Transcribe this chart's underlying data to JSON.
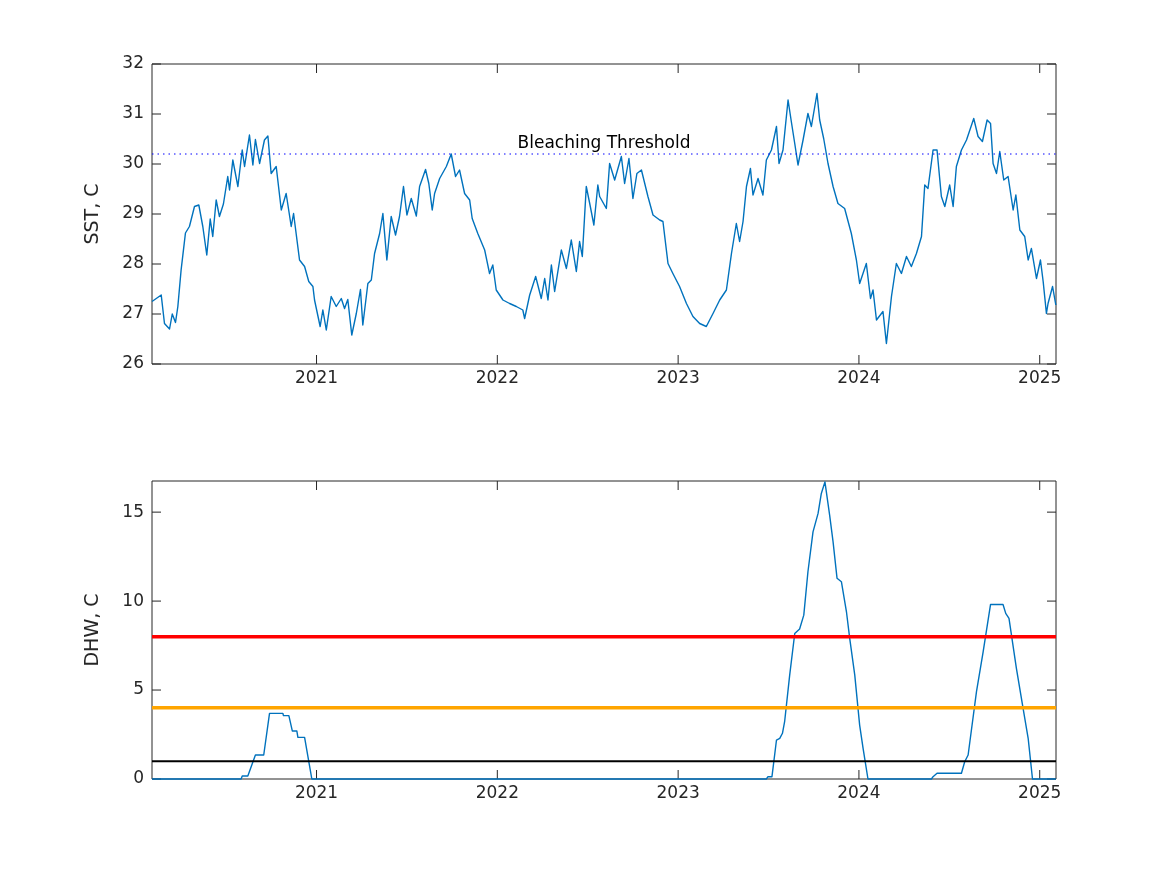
{
  "chart_data": [
    {
      "type": "line",
      "ylabel": "SST, C",
      "xlim": [
        2020.09,
        2025.09
      ],
      "xticks": [
        2021,
        2022,
        2023,
        2024,
        2025
      ],
      "ylim": [
        26,
        32
      ],
      "yticks": [
        26,
        27,
        28,
        29,
        30,
        31,
        32
      ],
      "marker": "none",
      "legend": false,
      "series": [
        {
          "color": "#0072bd",
          "x": [
            2020.09,
            2020.141,
            2020.159,
            2020.187,
            2020.202,
            2020.22,
            2020.233,
            2020.251,
            2020.275,
            2020.297,
            2020.325,
            2020.349,
            2020.371,
            2020.393,
            2020.412,
            2020.426,
            2020.445,
            2020.463,
            2020.485,
            2020.509,
            2020.519,
            2020.537,
            2020.565,
            2020.589,
            2020.602,
            2020.629,
            2020.648,
            2020.662,
            2020.685,
            2020.712,
            2020.731,
            2020.749,
            2020.777,
            2020.805,
            2020.832,
            2020.86,
            2020.873,
            2020.906,
            2020.934,
            2020.957,
            2020.98,
            2020.989,
            2021.02,
            2021.035,
            2021.054,
            2021.081,
            2021.109,
            2021.137,
            2021.155,
            2021.173,
            2021.195,
            2021.22,
            2021.243,
            2021.256,
            2021.284,
            2021.303,
            2021.321,
            2021.349,
            2021.367,
            2021.389,
            2021.413,
            2021.437,
            2021.459,
            2021.481,
            2021.5,
            2021.524,
            2021.552,
            2021.57,
            2021.603,
            2021.621,
            2021.64,
            2021.653,
            2021.681,
            2021.718,
            2021.745,
            2021.769,
            2021.791,
            2021.819,
            2021.847,
            2021.861,
            2021.892,
            2021.93,
            2021.957,
            2021.975,
            2021.994,
            2022.031,
            2022.068,
            2022.105,
            2022.141,
            2022.151,
            2022.179,
            2022.212,
            2022.243,
            2022.262,
            2022.28,
            2022.299,
            2022.317,
            2022.354,
            2022.382,
            2022.409,
            2022.437,
            2022.455,
            2022.47,
            2022.492,
            2022.511,
            2022.534,
            2022.556,
            2022.566,
            2022.603,
            2022.621,
            2022.649,
            2022.686,
            2022.704,
            2022.728,
            2022.75,
            2022.772,
            2022.797,
            2022.833,
            2022.861,
            2022.898,
            2022.916,
            2022.944,
            2022.971,
            2023.008,
            2023.046,
            2023.082,
            2023.119,
            2023.156,
            2023.193,
            2023.23,
            2023.267,
            2023.295,
            2023.322,
            2023.34,
            2023.359,
            2023.378,
            2023.4,
            2023.414,
            2023.442,
            2023.469,
            2023.488,
            2023.516,
            2023.544,
            2023.558,
            2023.58,
            2023.608,
            2023.626,
            2023.645,
            2023.663,
            2023.691,
            2023.718,
            2023.737,
            2023.768,
            2023.783,
            2023.805,
            2023.829,
            2023.857,
            2023.884,
            2023.921,
            2023.958,
            2023.986,
            2024.004,
            2024.041,
            2024.064,
            2024.078,
            2024.097,
            2024.133,
            2024.152,
            2024.18,
            2024.207,
            2024.235,
            2024.263,
            2024.29,
            2024.318,
            2024.346,
            2024.364,
            2024.382,
            2024.41,
            2024.432,
            2024.456,
            2024.475,
            2024.502,
            2024.521,
            2024.539,
            2024.567,
            2024.595,
            2024.635,
            2024.659,
            2024.683,
            2024.709,
            2024.728,
            2024.742,
            2024.761,
            2024.779,
            2024.801,
            2024.825,
            2024.853,
            2024.868,
            2024.89,
            2024.917,
            2024.936,
            2024.954,
            2024.982,
            2025.004,
            2025.019,
            2025.037,
            2025.046,
            2025.071,
            2025.089
          ],
          "values": [
            27.25,
            27.38,
            26.81,
            26.7,
            27.0,
            26.83,
            27.15,
            27.88,
            28.62,
            28.75,
            29.15,
            29.18,
            28.75,
            28.18,
            28.9,
            28.55,
            29.28,
            28.95,
            29.2,
            29.75,
            29.48,
            30.08,
            29.55,
            30.28,
            29.95,
            30.58,
            29.98,
            30.49,
            30.01,
            30.48,
            30.56,
            29.81,
            29.95,
            29.08,
            29.41,
            28.75,
            29.01,
            28.08,
            27.95,
            27.65,
            27.55,
            27.28,
            26.75,
            27.08,
            26.68,
            27.35,
            27.15,
            27.31,
            27.11,
            27.29,
            26.58,
            27.01,
            27.49,
            26.78,
            27.61,
            27.68,
            28.21,
            28.61,
            29.01,
            28.08,
            28.95,
            28.58,
            28.95,
            29.55,
            28.98,
            29.31,
            28.96,
            29.55,
            29.89,
            29.61,
            29.08,
            29.41,
            29.71,
            29.95,
            30.2,
            29.75,
            29.88,
            29.41,
            29.28,
            28.91,
            28.61,
            28.28,
            27.81,
            27.98,
            27.48,
            27.28,
            27.21,
            27.15,
            27.08,
            26.91,
            27.38,
            27.75,
            27.31,
            27.71,
            27.28,
            27.98,
            27.45,
            28.28,
            27.91,
            28.48,
            27.85,
            28.45,
            28.15,
            29.55,
            29.21,
            28.78,
            29.58,
            29.35,
            29.11,
            30.01,
            29.68,
            30.15,
            29.61,
            30.11,
            29.31,
            29.81,
            29.88,
            29.35,
            28.98,
            28.88,
            28.85,
            28.01,
            27.81,
            27.55,
            27.21,
            26.95,
            26.81,
            26.75,
            27.01,
            27.28,
            27.48,
            28.21,
            28.81,
            28.45,
            28.85,
            29.55,
            29.91,
            29.38,
            29.71,
            29.38,
            30.08,
            30.28,
            30.75,
            30.01,
            30.28,
            31.28,
            30.85,
            30.41,
            29.98,
            30.48,
            31.01,
            30.75,
            31.41,
            30.88,
            30.51,
            30.01,
            29.55,
            29.21,
            29.11,
            28.61,
            28.08,
            27.61,
            28.01,
            27.31,
            27.48,
            26.88,
            27.05,
            26.41,
            27.35,
            28.01,
            27.81,
            28.15,
            27.95,
            28.21,
            28.55,
            29.58,
            29.51,
            30.28,
            30.28,
            29.35,
            29.15,
            29.58,
            29.15,
            29.95,
            30.28,
            30.48,
            30.91,
            30.55,
            30.45,
            30.88,
            30.81,
            30.01,
            29.81,
            30.25,
            29.68,
            29.75,
            29.08,
            29.38,
            28.68,
            28.55,
            28.08,
            28.31,
            27.71,
            28.08,
            27.65,
            27.01,
            27.21,
            27.55,
            27.18
          ]
        }
      ],
      "ref_lines": [
        {
          "axis": "y",
          "value": 30.2,
          "label": "Bleaching Threshold",
          "color": "#0000ff",
          "line_style": "dotted"
        }
      ]
    },
    {
      "type": "line",
      "ylabel": "DHW, C",
      "xlim": [
        2020.09,
        2025.09
      ],
      "xticks": [
        2021,
        2022,
        2023,
        2024,
        2025
      ],
      "ylim": [
        0,
        16.75
      ],
      "yticks": [
        0,
        5,
        10,
        15
      ],
      "marker": "none",
      "legend": false,
      "series": [
        {
          "color": "#0072bd",
          "x": [
            2020.09,
            2020.583,
            2020.589,
            2020.62,
            2020.662,
            2020.708,
            2020.74,
            2020.814,
            2020.817,
            2020.847,
            2020.866,
            2020.891,
            2020.897,
            2020.934,
            2020.974,
            2023.488,
            2023.497,
            2023.519,
            2023.544,
            2023.562,
            2023.577,
            2023.589,
            2023.617,
            2023.645,
            2023.672,
            2023.695,
            2023.718,
            2023.746,
            2023.774,
            2023.792,
            2023.812,
            2023.838,
            2023.857,
            2023.879,
            2023.903,
            2023.931,
            2023.949,
            2023.977,
            2024.004,
            2024.023,
            2024.05,
            2024.401,
            2024.41,
            2024.432,
            2024.567,
            2024.585,
            2024.604,
            2024.65,
            2024.687,
            2024.728,
            2024.797,
            2024.812,
            2024.83,
            2024.871,
            2024.908,
            2024.936,
            2024.96,
            2025.089
          ],
          "values": [
            0,
            0,
            0.17,
            0.17,
            1.35,
            1.35,
            3.69,
            3.69,
            3.56,
            3.56,
            2.7,
            2.7,
            2.34,
            2.34,
            0,
            0,
            0.13,
            0.13,
            2.19,
            2.28,
            2.57,
            3.22,
            5.84,
            8.18,
            8.43,
            9.21,
            11.65,
            13.89,
            14.93,
            16.05,
            16.7,
            14.83,
            13.33,
            11.28,
            11.09,
            9.4,
            7.9,
            5.84,
            3.03,
            1.72,
            0,
            0,
            0.13,
            0.32,
            0.32,
            0.97,
            1.35,
            4.9,
            7.15,
            9.81,
            9.81,
            9.31,
            9.03,
            6.22,
            3.97,
            2.29,
            0,
            0
          ]
        }
      ],
      "ref_lines": [
        {
          "axis": "y",
          "value": 8,
          "color": "#ff0000",
          "line_style": "solid"
        },
        {
          "axis": "y",
          "value": 4,
          "color": "#ffa500",
          "line_style": "solid"
        },
        {
          "axis": "y",
          "value": 1,
          "color": "#000000",
          "line_style": "solid"
        }
      ]
    }
  ]
}
